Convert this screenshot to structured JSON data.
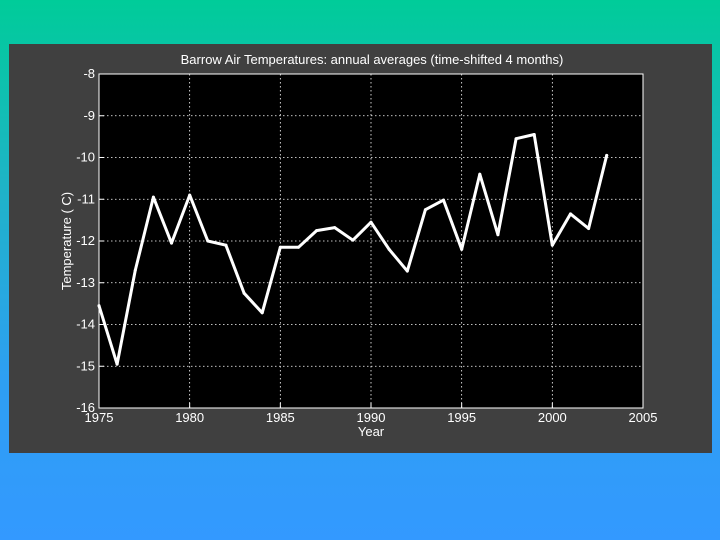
{
  "colors": {
    "panel_background": "#404040",
    "plot_background": "#000000",
    "line": "#ffffff",
    "grid": "#ffffff"
  },
  "chart_data": {
    "type": "line",
    "title": "Barrow Air Temperatures: annual averages (time-shifted 4 months)",
    "xlabel": "Year",
    "ylabel": "Temperature (  C)",
    "xlim": [
      1975,
      2005
    ],
    "ylim": [
      -16,
      -8
    ],
    "xticks": [
      1975,
      1980,
      1985,
      1990,
      1995,
      2000,
      2005
    ],
    "yticks": [
      -8,
      -9,
      -10,
      -11,
      -12,
      -13,
      -14,
      -15,
      -16
    ],
    "grid": true,
    "series": [
      {
        "x": [
          1975,
          1976,
          1977,
          1978,
          1979,
          1980,
          1981,
          1982,
          1983,
          1984,
          1985,
          1986,
          1987,
          1988,
          1989,
          1990,
          1991,
          1992,
          1993,
          1994,
          1995,
          1996,
          1997,
          1998,
          1999,
          2000,
          2001,
          2002,
          2003
        ],
        "values": [
          -13.55,
          -14.95,
          -12.7,
          -10.95,
          -12.05,
          -10.9,
          -12.0,
          -12.1,
          -13.25,
          -13.72,
          -12.15,
          -12.15,
          -11.75,
          -11.68,
          -11.98,
          -11.55,
          -12.2,
          -12.72,
          -11.25,
          -11.02,
          -12.2,
          -10.4,
          -11.85,
          -9.55,
          -9.45,
          -12.1,
          -11.35,
          -11.7,
          -9.95
        ]
      }
    ]
  }
}
